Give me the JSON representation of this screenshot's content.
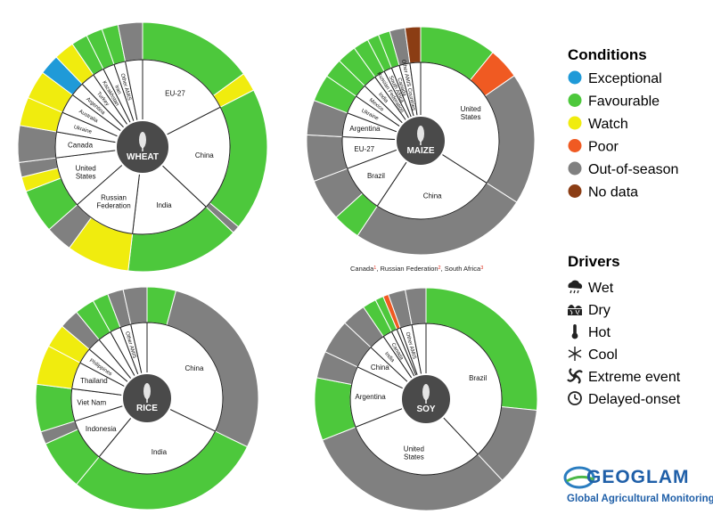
{
  "colors": {
    "exceptional": "#1f9ad8",
    "favourable": "#4dc83c",
    "watch": "#f0ec0e",
    "poor": "#f05a22",
    "out": "#808080",
    "nodata": "#8b3d14",
    "center": "#4a4a4a"
  },
  "legend": {
    "conditions_title": "Conditions",
    "conditions": [
      {
        "label": "Exceptional",
        "color": "#1f9ad8"
      },
      {
        "label": "Favourable",
        "color": "#4dc83c"
      },
      {
        "label": "Watch",
        "color": "#f0ec0e"
      },
      {
        "label": "Poor",
        "color": "#f05a22"
      },
      {
        "label": "Out-of-season",
        "color": "#808080"
      },
      {
        "label": "No data",
        "color": "#8b3d14"
      }
    ],
    "drivers_title": "Drivers",
    "drivers": [
      {
        "label": "Wet",
        "icon": "rain-cloud-icon"
      },
      {
        "label": "Dry",
        "icon": "dry-soil-icon"
      },
      {
        "label": "Hot",
        "icon": "thermometer-icon"
      },
      {
        "label": "Cool",
        "icon": "snowflake-icon"
      },
      {
        "label": "Extreme event",
        "icon": "cyclone-icon"
      },
      {
        "label": "Delayed-onset",
        "icon": "clock-icon"
      }
    ]
  },
  "logo": {
    "name": "GEOGLAM",
    "subtitle": "Global Agricultural Monitoring"
  },
  "soy_note": {
    "parts": [
      "Canada",
      "1",
      ", Russian Federation",
      "2",
      ", South Africa",
      "3"
    ]
  },
  "chart_data": [
    {
      "type": "pie",
      "title": "WHEAT",
      "icon": "wheat-icon",
      "countries": [
        {
          "name": "EU-27",
          "share": 0.165,
          "segments": [
            {
              "c": "favourable",
              "f": 0.86
            },
            {
              "c": "watch",
              "f": 0.14
            }
          ]
        },
        {
          "name": "China",
          "share": 0.185,
          "segments": [
            {
              "c": "favourable",
              "f": 0.95
            },
            {
              "c": "out",
              "f": 0.05
            }
          ]
        },
        {
          "name": "India",
          "share": 0.14,
          "segments": [
            {
              "c": "favourable",
              "f": 1.0
            }
          ]
        },
        {
          "name": "Russian Federation",
          "share": 0.11,
          "segments": [
            {
              "c": "watch",
              "f": 0.7
            },
            {
              "c": "out",
              "f": 0.3
            }
          ]
        },
        {
          "name": "United States",
          "share": 0.09,
          "segments": [
            {
              "c": "favourable",
              "f": 0.6
            },
            {
              "c": "watch",
              "f": 0.2
            },
            {
              "c": "out",
              "f": 0.2
            }
          ]
        },
        {
          "name": "Canada",
          "share": 0.045,
          "segments": [
            {
              "c": "out",
              "f": 1.0
            }
          ]
        },
        {
          "name": "Ukraine",
          "share": 0.035,
          "segments": [
            {
              "c": "watch",
              "f": 1.0
            }
          ]
        },
        {
          "name": "Australia",
          "share": 0.035,
          "segments": [
            {
              "c": "watch",
              "f": 1.0
            }
          ]
        },
        {
          "name": "Argentina",
          "share": 0.025,
          "segments": [
            {
              "c": "exceptional",
              "f": 1.0
            }
          ]
        },
        {
          "name": "Turkey",
          "share": 0.025,
          "segments": [
            {
              "c": "watch",
              "f": 1.0
            }
          ]
        },
        {
          "name": "Kazakhstan",
          "share": 0.02,
          "segments": [
            {
              "c": "favourable",
              "f": 1.0
            }
          ]
        },
        {
          "name": "Iran",
          "share": 0.02,
          "segments": [
            {
              "c": "favourable",
              "f": 1.0
            }
          ]
        },
        {
          "name": "Other AMIS",
          "share": 0.02,
          "segments": [
            {
              "c": "favourable",
              "f": 1.0
            }
          ]
        },
        {
          "name": "Other",
          "share": 0.03,
          "segments": [
            {
              "c": "out",
              "f": 1.0
            }
          ]
        }
      ],
      "inner_labels": [
        "EU-27",
        "China",
        "India",
        "Russian Federation",
        "United States",
        "Canada",
        "Ukraine",
        "Australia",
        "Argentina",
        "Turkey",
        "Kazakhstan",
        "Iran",
        "Other AMIS"
      ]
    },
    {
      "type": "pie",
      "title": "MAIZE",
      "icon": "maize-icon",
      "countries": [
        {
          "name": "United States",
          "share": 0.31,
          "segments": [
            {
              "c": "favourable",
              "f": 0.32
            },
            {
              "c": "poor",
              "f": 0.13
            },
            {
              "c": "out",
              "f": 0.55
            }
          ]
        },
        {
          "name": "China",
          "share": 0.23,
          "segments": [
            {
              "c": "out",
              "f": 1.0
            }
          ]
        },
        {
          "name": "Brazil",
          "share": 0.09,
          "segments": [
            {
              "c": "favourable",
              "f": 0.4
            },
            {
              "c": "out",
              "f": 0.6
            }
          ]
        },
        {
          "name": "EU-27",
          "share": 0.06,
          "segments": [
            {
              "c": "out",
              "f": 1.0
            }
          ]
        },
        {
          "name": "Argentina",
          "share": 0.045,
          "segments": [
            {
              "c": "out",
              "f": 1.0
            }
          ]
        },
        {
          "name": "Ukraine",
          "share": 0.035,
          "segments": [
            {
              "c": "favourable",
              "f": 1.0
            }
          ]
        },
        {
          "name": "Mexico",
          "share": 0.025,
          "segments": [
            {
              "c": "favourable",
              "f": 1.0
            }
          ]
        },
        {
          "name": "India",
          "share": 0.025,
          "segments": [
            {
              "c": "favourable",
              "f": 1.0
            }
          ]
        },
        {
          "name": "Russian Federation",
          "share": 0.02,
          "segments": [
            {
              "c": "favourable",
              "f": 1.0
            }
          ]
        },
        {
          "name": "South Africa",
          "share": 0.015,
          "segments": [
            {
              "c": "favourable",
              "f": 1.0
            }
          ]
        },
        {
          "name": "Canada",
          "share": 0.015,
          "segments": [
            {
              "c": "favourable",
              "f": 1.0
            }
          ]
        },
        {
          "name": "Other AMIS Countries",
          "share": 0.02,
          "segments": [
            {
              "c": "out",
              "f": 1.0
            }
          ]
        },
        {
          "name": "Other",
          "share": 0.02,
          "segments": [
            {
              "c": "nodata",
              "f": 1.0
            }
          ]
        }
      ],
      "inner_labels": [
        "United States",
        "China",
        "Brazil",
        "EU-27",
        "Argentina",
        "Ukraine",
        "Mexico",
        "India",
        "Russian Federation",
        "South Africa",
        "Canada",
        "Other AMIS Countries"
      ]
    },
    {
      "type": "pie",
      "title": "RICE",
      "icon": "rice-icon",
      "countries": [
        {
          "name": "China",
          "share": 0.28,
          "segments": [
            {
              "c": "favourable",
              "f": 0.13
            },
            {
              "c": "out",
              "f": 0.87
            }
          ]
        },
        {
          "name": "India",
          "share": 0.25,
          "segments": [
            {
              "c": "favourable",
              "f": 1.0
            }
          ]
        },
        {
          "name": "Indonesia",
          "share": 0.08,
          "segments": [
            {
              "c": "favourable",
              "f": 0.8
            },
            {
              "c": "out",
              "f": 0.2
            }
          ]
        },
        {
          "name": "Viet Nam",
          "share": 0.06,
          "segments": [
            {
              "c": "favourable",
              "f": 1.0
            }
          ]
        },
        {
          "name": "Thailand",
          "share": 0.05,
          "segments": [
            {
              "c": "watch",
              "f": 1.0
            }
          ]
        },
        {
          "name": "Philippines",
          "share": 0.03,
          "segments": [
            {
              "c": "watch",
              "f": 1.0
            }
          ]
        },
        {
          "name": "Brazil",
          "share": 0.025,
          "segments": [
            {
              "c": "out",
              "f": 1.0
            }
          ]
        },
        {
          "name": "Japan",
          "share": 0.025,
          "segments": [
            {
              "c": "favourable",
              "f": 1.0
            }
          ]
        },
        {
          "name": "United States",
          "share": 0.02,
          "segments": [
            {
              "c": "favourable",
              "f": 1.0
            }
          ]
        },
        {
          "name": "Other AMIS",
          "share": 0.02,
          "segments": [
            {
              "c": "out",
              "f": 1.0
            }
          ]
        },
        {
          "name": "Other",
          "share": 0.03,
          "segments": [
            {
              "c": "out",
              "f": 1.0
            }
          ]
        }
      ],
      "inner_labels": [
        "China",
        "India",
        "Indonesia",
        "Viet Nam",
        "Thailand",
        "Philippines",
        "Other AMIS"
      ]
    },
    {
      "type": "pie",
      "title": "SOY",
      "icon": "soy-icon",
      "countries": [
        {
          "name": "Brazil",
          "share": 0.38,
          "segments": [
            {
              "c": "favourable",
              "f": 0.7
            },
            {
              "c": "out",
              "f": 0.3
            }
          ]
        },
        {
          "name": "United States",
          "share": 0.31,
          "segments": [
            {
              "c": "out",
              "f": 1.0
            }
          ]
        },
        {
          "name": "Argentina",
          "share": 0.13,
          "segments": [
            {
              "c": "favourable",
              "f": 0.7
            },
            {
              "c": "out",
              "f": 0.3
            }
          ]
        },
        {
          "name": "China",
          "share": 0.05,
          "segments": [
            {
              "c": "out",
              "f": 1.0
            }
          ]
        },
        {
          "name": "India",
          "share": 0.035,
          "segments": [
            {
              "c": "out",
              "f": 1.0
            }
          ]
        },
        {
          "name": "Canada",
          "share": 0.02,
          "segments": [
            {
              "c": "favourable",
              "f": 1.0
            }
          ]
        },
        {
          "name": "Russian Federation",
          "share": 0.012,
          "segments": [
            {
              "c": "favourable",
              "f": 1.0
            }
          ]
        },
        {
          "name": "South Africa",
          "share": 0.008,
          "segments": [
            {
              "c": "poor",
              "f": 1.0
            }
          ]
        },
        {
          "name": "Other AMIS",
          "share": 0.025,
          "segments": [
            {
              "c": "out",
              "f": 1.0
            }
          ]
        },
        {
          "name": "Other",
          "share": 0.03,
          "segments": [
            {
              "c": "out",
              "f": 1.0
            }
          ]
        }
      ],
      "inner_labels": [
        "Brazil",
        "United States",
        "Argentina",
        "China",
        "India",
        "Canada",
        "Other AMIS"
      ]
    }
  ]
}
